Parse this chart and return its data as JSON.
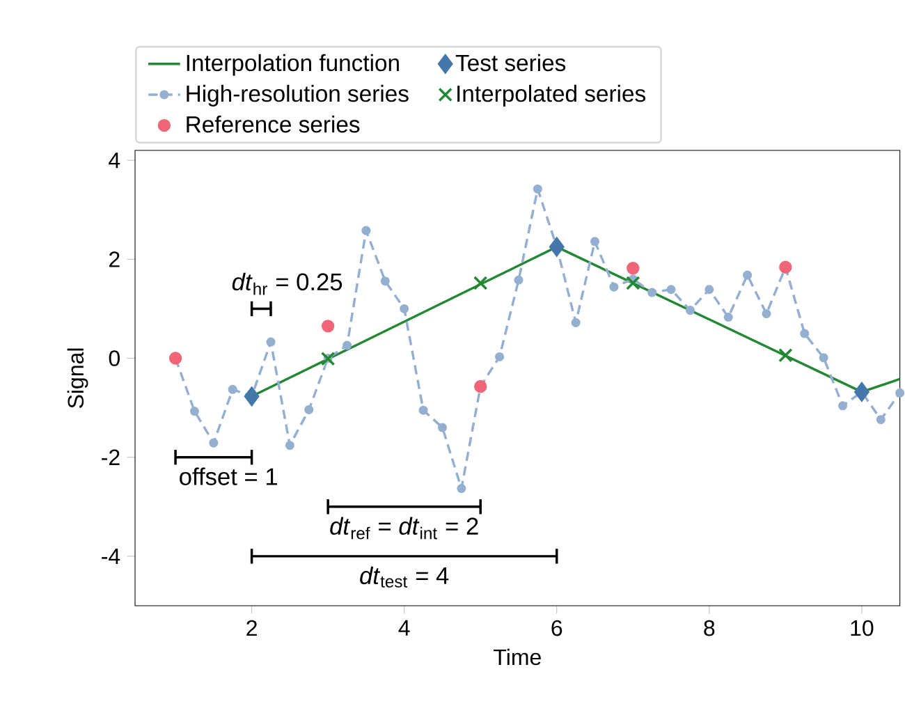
{
  "chart_data": {
    "type": "line",
    "xlabel": "Time",
    "ylabel": "Signal",
    "xlim": [
      0.47,
      10.5
    ],
    "ylim": [
      -5,
      4.2
    ],
    "xticks": [
      2,
      4,
      6,
      8,
      10
    ],
    "yticks": [
      -4,
      -2,
      0,
      2,
      4
    ],
    "legend": "top",
    "series": [
      {
        "name": "Interpolation function",
        "color": "#228833",
        "marker": "none",
        "line_style": "solid",
        "x": [
          2,
          6,
          10,
          10.5
        ],
        "values": [
          -0.77,
          2.25,
          -0.68,
          -0.42
        ]
      },
      {
        "name": "High-resolution series",
        "color": "#94afd0",
        "marker": "circle",
        "line_style": "dashed",
        "x": [
          1,
          1.25,
          1.5,
          1.75,
          2,
          2.25,
          2.5,
          2.75,
          3,
          3.25,
          3.5,
          3.75,
          4,
          4.25,
          4.5,
          4.75,
          5,
          5.25,
          5.5,
          5.75,
          6,
          6.25,
          6.5,
          6.75,
          7,
          7.25,
          7.5,
          7.75,
          8,
          8.25,
          8.5,
          8.75,
          9,
          9.25,
          9.5,
          9.75,
          10,
          10.25,
          10.5
        ],
        "values": [
          0.0,
          -1.07,
          -1.71,
          -0.63,
          -0.77,
          0.33,
          -1.76,
          -1.04,
          0.0,
          0.26,
          2.58,
          1.56,
          1.0,
          -1.05,
          -1.4,
          -2.63,
          -0.57,
          0.03,
          1.58,
          3.42,
          2.25,
          0.72,
          2.36,
          1.44,
          1.6,
          1.33,
          1.39,
          0.97,
          1.39,
          0.83,
          1.68,
          0.9,
          1.84,
          0.5,
          0.01,
          -0.96,
          -0.68,
          -1.24,
          -0.7
        ]
      },
      {
        "name": "Reference series",
        "type": "scatter",
        "color": "#ee6677",
        "marker": "circle",
        "x": [
          1,
          3,
          5,
          7,
          9
        ],
        "values": [
          0.0,
          0.65,
          -0.57,
          1.82,
          1.84
        ]
      },
      {
        "name": "Test series",
        "type": "scatter",
        "color": "#4477aa",
        "marker": "diamond",
        "x": [
          2,
          6,
          10
        ],
        "values": [
          -0.77,
          2.25,
          -0.68
        ]
      },
      {
        "name": "Interpolated series",
        "type": "scatter",
        "color": "#228833",
        "marker": "cross",
        "x": [
          3,
          5,
          7,
          9
        ],
        "values": [
          -0.01,
          1.52,
          1.52,
          0.06
        ]
      },
      {
        "color": "#000000",
        "marker": "none",
        "x": [
          2,
          2.25
        ],
        "values": [
          1.0,
          1.0
        ]
      },
      {
        "color": "#000000",
        "marker": "none",
        "x": [
          1,
          2
        ],
        "values": [
          -2.0,
          -2.0
        ]
      },
      {
        "color": "#000000",
        "marker": "none",
        "x": [
          3,
          5
        ],
        "values": [
          -3.0,
          -3.0
        ]
      },
      {
        "color": "#000000",
        "marker": "none",
        "x": [
          2,
          6
        ],
        "values": [
          -4.0,
          -4.0
        ]
      }
    ],
    "annotations": [
      "*dt*$_{hr}$ = 0.25",
      "offset = 1",
      "*dt*$_{ref}$ = *dt*$_{int}$ = 2",
      "*dt*$_{test}$ = 4"
    ]
  }
}
